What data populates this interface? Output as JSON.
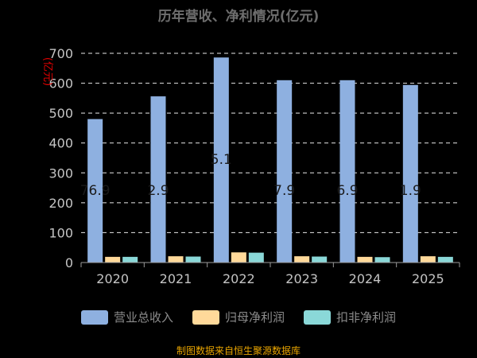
{
  "chart_data": {
    "type": "bar",
    "title": "历年营收、净利情况(亿元)",
    "ylabel": "(亿元)",
    "categories": [
      "2020",
      "2021",
      "2022",
      "2023",
      "2024",
      "2025"
    ],
    "ylim": [
      0,
      700
    ],
    "yticks": [
      0,
      100,
      200,
      300,
      400,
      500,
      600,
      700
    ],
    "grid": true,
    "legend_position": "bottom",
    "series": [
      {
        "name": "营业总收入",
        "color": "#8eb0e0",
        "values": [
          480,
          556,
          686,
          610,
          610,
          594
        ]
      },
      {
        "name": "归母净利润",
        "color": "#ffd99a",
        "values": [
          19,
          21,
          34,
          21,
          19,
          21
        ]
      },
      {
        "name": "扣非净利润",
        "color": "#8ad8d8",
        "values": [
          19,
          20,
          33,
          20,
          18,
          19
        ]
      }
    ],
    "annotations": [
      "76.9",
      "2.9",
      "5.1",
      "7.9",
      "6.9",
      "1.9"
    ]
  },
  "footer": {
    "source": "制图数据来自恒生聚源数据库"
  }
}
